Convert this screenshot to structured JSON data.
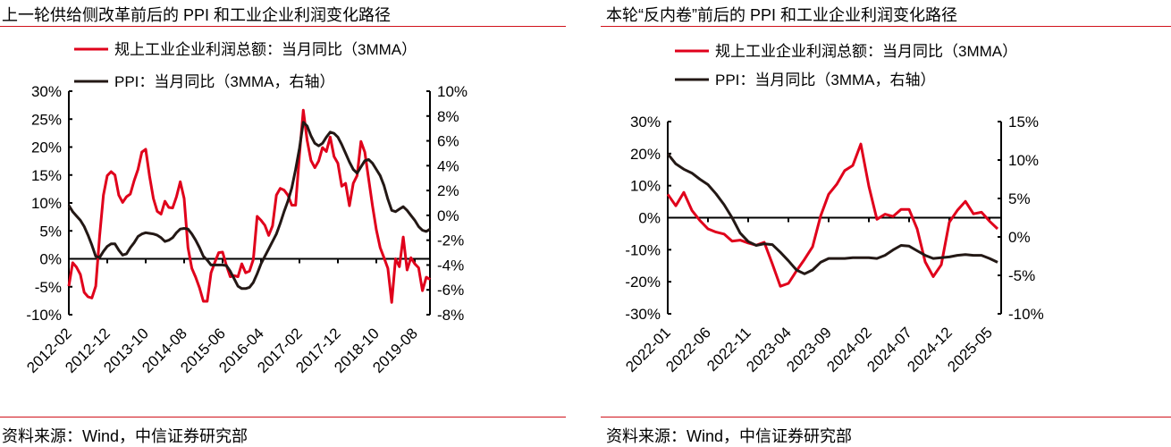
{
  "colors": {
    "profit": "#e0001b",
    "ppi": "#231815",
    "rule": "#d0121b"
  },
  "chart_data": [
    {
      "type": "line",
      "title": "上一轮供给侧改革前后的 PPI 和工业企业利润变化路径",
      "source": "资料来源：Wind，中信证券研究部",
      "start_month": "2012-02",
      "x_tick_labels": [
        "2012-02",
        "2012-12",
        "2013-10",
        "2014-08",
        "2015-06",
        "2016-04",
        "2017-02",
        "2017-12",
        "2018-10",
        "2019-08"
      ],
      "x_tick_step_months": 10,
      "left_axis": {
        "ylim": [
          -10,
          30
        ],
        "ticks": [
          "30%",
          "25%",
          "20%",
          "15%",
          "10%",
          "5%",
          "0%",
          "-5%",
          "-10%"
        ],
        "tick_values": [
          30,
          25,
          20,
          15,
          10,
          5,
          0,
          -5,
          -10
        ]
      },
      "right_axis": {
        "ylim": [
          -8,
          10
        ],
        "ticks": [
          "10%",
          "8%",
          "6%",
          "4%",
          "2%",
          "0%",
          "-2%",
          "-4%",
          "-6%",
          "-8%"
        ],
        "tick_values": [
          10,
          8,
          6,
          4,
          2,
          0,
          -2,
          -4,
          -6,
          -8
        ]
      },
      "legend": [
        "规上工业企业利润总额：当月同比（3MMA）",
        "PPI：当月同比（3MMA，右轴）"
      ],
      "series": [
        {
          "name": "规上工业企业利润总额：当月同比（3MMA）",
          "axis": "left",
          "color_key": "profit",
          "values": [
            -4.9,
            -0.7,
            -1.5,
            -2.8,
            -6.0,
            -6.8,
            -7.0,
            -4.9,
            4.0,
            11.4,
            14.9,
            15.6,
            15.0,
            11.4,
            10.1,
            11.1,
            11.6,
            14.0,
            16.0,
            19.1,
            19.6,
            14.8,
            10.8,
            8.5,
            8.0,
            10.3,
            9.2,
            9.1,
            11.1,
            13.8,
            10.8,
            2.0,
            -1.7,
            -3.3,
            -5.2,
            -7.6,
            -7.6,
            -2.5,
            -0.6,
            1.1,
            1.2,
            -1.2,
            -3.2,
            -3.0,
            -3.2,
            -0.9,
            -2.5,
            -2.2,
            -0.1,
            7.6,
            6.9,
            6.0,
            4.2,
            5.9,
            11.4,
            12.6,
            12.3,
            11.4,
            9.6,
            9.6,
            18.6,
            26.6,
            21.2,
            17.6,
            16.3,
            17.5,
            19.9,
            19.2,
            21.8,
            18.3,
            17.1,
            13.0,
            13.5,
            9.5,
            13.5,
            14.9,
            21.0,
            19.1,
            14.3,
            9.5,
            5.2,
            2.0,
            0.2,
            -1.7,
            -7.8,
            0.0,
            -1.4,
            3.9,
            -2.0,
            0.2,
            -0.9,
            -1.6,
            -5.7,
            -3.3,
            -3.7
          ]
        },
        {
          "name": "PPI：当月同比（3MMA，右轴）",
          "axis": "right",
          "color_key": "ppi",
          "values": [
            0.8,
            0.3,
            -0.05,
            -0.4,
            -0.9,
            -1.6,
            -2.4,
            -3.3,
            -3.4,
            -2.9,
            -2.5,
            -2.3,
            -2.3,
            -2.8,
            -3.2,
            -3.1,
            -2.6,
            -2.2,
            -1.7,
            -1.5,
            -1.4,
            -1.45,
            -1.5,
            -1.6,
            -1.8,
            -2.1,
            -2.0,
            -1.8,
            -1.4,
            -1.1,
            -1.05,
            -1.1,
            -1.5,
            -2.0,
            -2.6,
            -3.3,
            -3.6,
            -4.0,
            -4.0,
            -4.0,
            -4.0,
            -4.05,
            -4.5,
            -5.1,
            -5.7,
            -5.9,
            -5.9,
            -5.8,
            -5.4,
            -4.7,
            -3.9,
            -3.3,
            -2.7,
            -2.1,
            -1.5,
            -0.65,
            0.3,
            1.15,
            2.2,
            3.7,
            5.4,
            7.5,
            7.2,
            6.4,
            5.8,
            5.6,
            5.8,
            6.3,
            6.7,
            6.6,
            6.3,
            5.7,
            5.0,
            4.3,
            3.7,
            3.4,
            3.9,
            4.4,
            4.5,
            4.2,
            3.7,
            3.2,
            2.4,
            1.3,
            0.4,
            0.3,
            0.5,
            0.7,
            0.4,
            0.0,
            -0.4,
            -0.9,
            -1.2,
            -1.3,
            -1.1
          ]
        }
      ]
    },
    {
      "type": "line",
      "title": "本轮“反内卷”前后的 PPI 和工业企业利润变化路径",
      "source": "资料来源：Wind，中信证券研究部",
      "start_month": "2022-01",
      "x_tick_labels": [
        "2022-01",
        "2022-06",
        "2022-11",
        "2023-04",
        "2023-09",
        "2024-02",
        "2024-07",
        "2024-12",
        "2025-05"
      ],
      "x_tick_step_months": 5,
      "left_axis": {
        "ylim": [
          -30,
          30
        ],
        "ticks": [
          "30%",
          "20%",
          "10%",
          "0%",
          "-10%",
          "-20%",
          "-30%"
        ],
        "tick_values": [
          30,
          20,
          10,
          0,
          -10,
          -20,
          -30
        ]
      },
      "right_axis": {
        "ylim": [
          -10,
          15
        ],
        "ticks": [
          "15%",
          "10%",
          "5%",
          "0%",
          "-5%",
          "-10%"
        ],
        "tick_values": [
          15,
          10,
          5,
          0,
          -5,
          -10
        ]
      },
      "legend": [
        "规上工业企业利润总额：当月同比（3MMA）",
        "PPI：当月同比（3MMA，右轴）"
      ],
      "series": [
        {
          "name": "规上工业企业利润总额：当月同比（3MMA）",
          "axis": "left",
          "color_key": "profit",
          "values": [
            7.3,
            3.7,
            7.9,
            2.3,
            -0.9,
            -3.5,
            -4.5,
            -5.1,
            -7.3,
            -7.0,
            -7.9,
            -8.6,
            -7.7,
            -14.4,
            -21.4,
            -20.5,
            -16.6,
            -13.0,
            -9.1,
            0.5,
            7.3,
            10.4,
            14.7,
            16.3,
            23.0,
            9.8,
            -0.5,
            1.1,
            0.4,
            2.6,
            2.6,
            -3.5,
            -13.8,
            -18.4,
            -14.7,
            -1.4,
            2.3,
            5.1,
            1.2,
            1.7,
            -1.1,
            -3.5
          ]
        },
        {
          "name": "PPI：当月同比（3MMA，右轴）",
          "axis": "right",
          "color_key": "ppi",
          "values": [
            10.8,
            9.5,
            8.8,
            8.3,
            7.5,
            6.8,
            5.6,
            4.2,
            2.5,
            0.5,
            -0.6,
            -1.1,
            -0.9,
            -1.0,
            -2.0,
            -3.1,
            -4.3,
            -4.8,
            -4.3,
            -3.3,
            -2.8,
            -2.8,
            -2.8,
            -2.7,
            -2.7,
            -2.7,
            -2.8,
            -2.4,
            -1.7,
            -1.1,
            -1.2,
            -1.8,
            -2.4,
            -2.8,
            -2.7,
            -2.6,
            -2.4,
            -2.3,
            -2.4,
            -2.4,
            -2.8,
            -3.3
          ]
        }
      ]
    }
  ]
}
